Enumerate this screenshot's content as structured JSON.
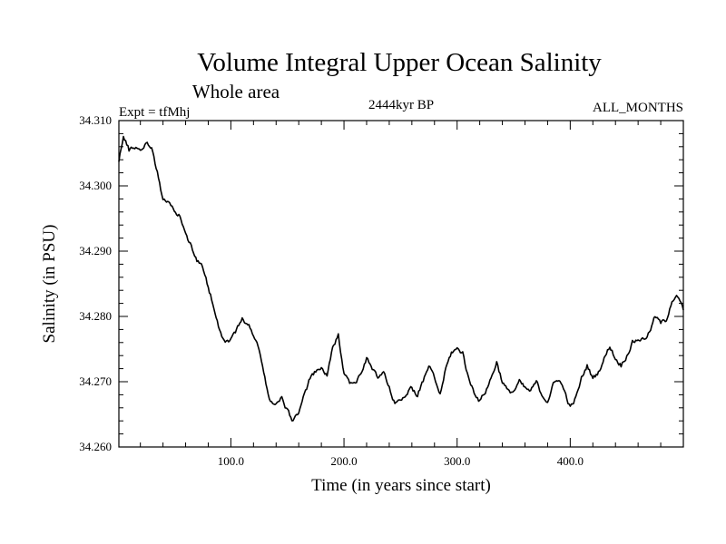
{
  "chart_data": {
    "type": "line",
    "title": "Volume Integral Upper Ocean Salinity",
    "subtitle": "Whole area",
    "experiment": "Expt = tfMhj",
    "period": "2444kyr BP",
    "months": "ALL_MONTHS",
    "xlabel": "Time (in years since start)",
    "ylabel": "Salinity (in PSU)",
    "xlim": [
      1,
      500
    ],
    "ylim": [
      34.26,
      34.31
    ],
    "x_ticks": [
      100,
      200,
      300,
      400
    ],
    "x_tick_labels": [
      "100.0",
      "200.0",
      "300.0",
      "400.0"
    ],
    "y_ticks": [
      34.26,
      34.27,
      34.28,
      34.29,
      34.3,
      34.31
    ],
    "y_tick_labels": [
      "34.260",
      "34.270",
      "34.280",
      "34.290",
      "34.300",
      "34.310"
    ],
    "anchors": [
      [
        1,
        34.304
      ],
      [
        5,
        34.3075
      ],
      [
        10,
        34.3055
      ],
      [
        15,
        34.306
      ],
      [
        20,
        34.3055
      ],
      [
        25,
        34.3065
      ],
      [
        30,
        34.306
      ],
      [
        35,
        34.302
      ],
      [
        40,
        34.298
      ],
      [
        45,
        34.2975
      ],
      [
        50,
        34.296
      ],
      [
        55,
        34.2955
      ],
      [
        60,
        34.2925
      ],
      [
        65,
        34.291
      ],
      [
        70,
        34.2885
      ],
      [
        75,
        34.2875
      ],
      [
        80,
        34.2845
      ],
      [
        85,
        34.2815
      ],
      [
        90,
        34.278
      ],
      [
        95,
        34.276
      ],
      [
        100,
        34.2765
      ],
      [
        105,
        34.278
      ],
      [
        110,
        34.2795
      ],
      [
        115,
        34.279
      ],
      [
        120,
        34.277
      ],
      [
        125,
        34.275
      ],
      [
        130,
        34.2705
      ],
      [
        135,
        34.267
      ],
      [
        140,
        34.2665
      ],
      [
        145,
        34.2675
      ],
      [
        150,
        34.2655
      ],
      [
        155,
        34.264
      ],
      [
        160,
        34.2655
      ],
      [
        165,
        34.268
      ],
      [
        170,
        34.2705
      ],
      [
        175,
        34.2715
      ],
      [
        180,
        34.272
      ],
      [
        185,
        34.271
      ],
      [
        190,
        34.275
      ],
      [
        195,
        34.277
      ],
      [
        200,
        34.2715
      ],
      [
        205,
        34.27
      ],
      [
        210,
        34.2695
      ],
      [
        215,
        34.2715
      ],
      [
        220,
        34.2735
      ],
      [
        225,
        34.272
      ],
      [
        230,
        34.2705
      ],
      [
        235,
        34.2715
      ],
      [
        240,
        34.269
      ],
      [
        245,
        34.2665
      ],
      [
        250,
        34.2675
      ],
      [
        255,
        34.268
      ],
      [
        260,
        34.269
      ],
      [
        265,
        34.268
      ],
      [
        270,
        34.27
      ],
      [
        275,
        34.2725
      ],
      [
        280,
        34.2705
      ],
      [
        285,
        34.268
      ],
      [
        290,
        34.272
      ],
      [
        295,
        34.2745
      ],
      [
        300,
        34.275
      ],
      [
        305,
        34.2745
      ],
      [
        310,
        34.2705
      ],
      [
        315,
        34.2685
      ],
      [
        320,
        34.267
      ],
      [
        325,
        34.2685
      ],
      [
        330,
        34.2705
      ],
      [
        335,
        34.273
      ],
      [
        340,
        34.27
      ],
      [
        345,
        34.2685
      ],
      [
        350,
        34.2685
      ],
      [
        355,
        34.27
      ],
      [
        360,
        34.269
      ],
      [
        365,
        34.2685
      ],
      [
        370,
        34.27
      ],
      [
        375,
        34.268
      ],
      [
        380,
        34.267
      ],
      [
        385,
        34.2695
      ],
      [
        390,
        34.2705
      ],
      [
        395,
        34.2685
      ],
      [
        400,
        34.266
      ],
      [
        405,
        34.2675
      ],
      [
        410,
        34.2705
      ],
      [
        415,
        34.2725
      ],
      [
        420,
        34.2705
      ],
      [
        425,
        34.2715
      ],
      [
        430,
        34.2735
      ],
      [
        435,
        34.2755
      ],
      [
        440,
        34.2735
      ],
      [
        445,
        34.2725
      ],
      [
        450,
        34.274
      ],
      [
        455,
        34.276
      ],
      [
        460,
        34.2765
      ],
      [
        465,
        34.2765
      ],
      [
        470,
        34.2775
      ],
      [
        475,
        34.28
      ],
      [
        480,
        34.279
      ],
      [
        485,
        34.2795
      ],
      [
        490,
        34.2825
      ],
      [
        495,
        34.283
      ],
      [
        500,
        34.281
      ]
    ],
    "noise_amplitude": 0.0006,
    "line_color": "#000000"
  }
}
